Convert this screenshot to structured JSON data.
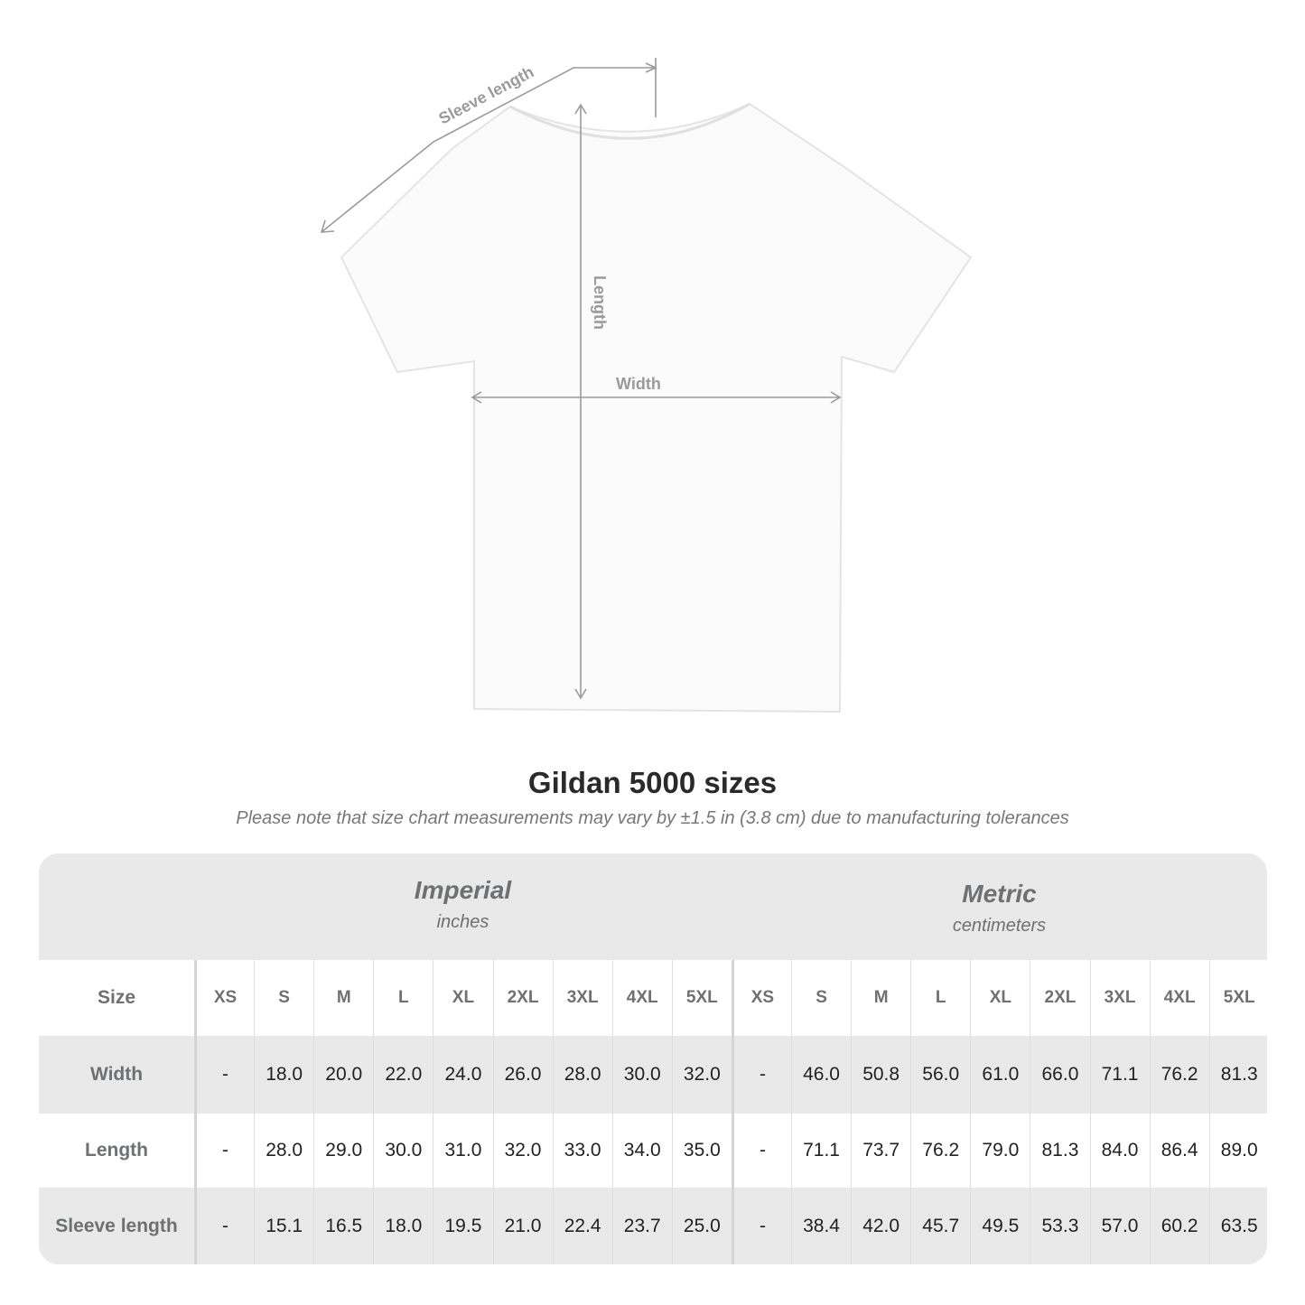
{
  "diagram": {
    "labels": {
      "sleeve": "Sleeve length",
      "length": "Length",
      "width": "Width"
    },
    "line_color": "#9a9a9a"
  },
  "title": "Gildan 5000 sizes",
  "note": "Please note that size chart measurements may vary by ±1.5 in (3.8 cm) due to manufacturing tolerances",
  "table": {
    "imperial": {
      "name": "Imperial",
      "unit": "inches"
    },
    "metric": {
      "name": "Metric",
      "unit": "centimeters"
    },
    "size_label": "Size",
    "sizes": [
      "XS",
      "S",
      "M",
      "L",
      "XL",
      "2XL",
      "3XL",
      "4XL",
      "5XL"
    ],
    "rows": [
      {
        "label": "Width",
        "imperial": [
          "-",
          "18.0",
          "20.0",
          "22.0",
          "24.0",
          "26.0",
          "28.0",
          "30.0",
          "32.0"
        ],
        "metric": [
          "-",
          "46.0",
          "50.8",
          "56.0",
          "61.0",
          "66.0",
          "71.1",
          "76.2",
          "81.3"
        ]
      },
      {
        "label": "Length",
        "imperial": [
          "-",
          "28.0",
          "29.0",
          "30.0",
          "31.0",
          "32.0",
          "33.0",
          "34.0",
          "35.0"
        ],
        "metric": [
          "-",
          "71.1",
          "73.7",
          "76.2",
          "79.0",
          "81.3",
          "84.0",
          "86.4",
          "89.0"
        ]
      },
      {
        "label": "Sleeve length",
        "imperial": [
          "-",
          "15.1",
          "16.5",
          "18.0",
          "19.5",
          "21.0",
          "22.4",
          "23.7",
          "25.0"
        ],
        "metric": [
          "-",
          "38.4",
          "42.0",
          "45.7",
          "49.5",
          "53.3",
          "57.0",
          "60.2",
          "63.5"
        ]
      }
    ],
    "colors": {
      "header_bg": "#e9e9e9",
      "alt_row": "#e9e9e9",
      "label_text": "#6d7173"
    }
  }
}
